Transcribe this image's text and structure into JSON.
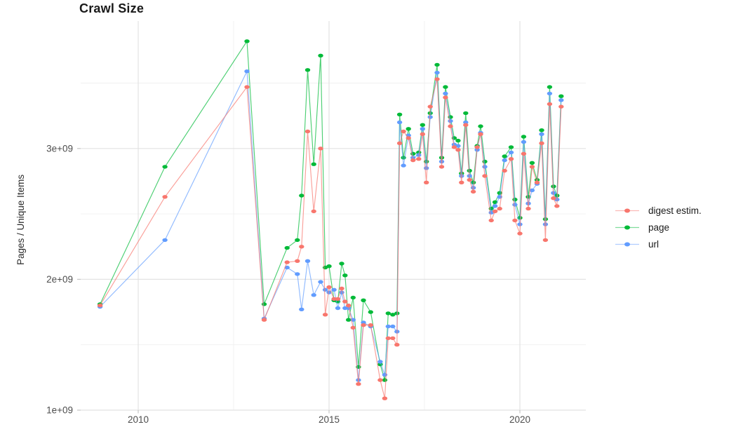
{
  "chart": {
    "title": "Crawl Size",
    "y_axis_title": "Pages / Unique Items"
  },
  "chart_data": {
    "type": "line",
    "title": "Crawl Size",
    "xlabel": "",
    "ylabel": "Pages / Unique Items",
    "y_scale": "1e9 (values below are billions)",
    "x_unit": "calendar year (decimal)",
    "xlim": [
      2008.5,
      2021.9
    ],
    "ylim_e9": [
      1.0,
      3.97
    ],
    "grid": true,
    "legend_position": "right",
    "x_ticks": {
      "major": [
        2010,
        2015,
        2020
      ],
      "labels": [
        "2010",
        "2015",
        "2020"
      ],
      "minor": [
        2012.5,
        2017.5
      ]
    },
    "y_ticks": {
      "major_e9": [
        1,
        2,
        3
      ],
      "labels": [
        "1e+09",
        "2e+09",
        "3e+09"
      ],
      "minor_e9": [
        1.5,
        2.5,
        3.5
      ]
    },
    "x": [
      2009.0,
      2010.7,
      2012.85,
      2013.3,
      2013.9,
      2014.17,
      2014.28,
      2014.44,
      2014.6,
      2014.78,
      2014.9,
      2015.0,
      2015.13,
      2015.23,
      2015.33,
      2015.42,
      2015.51,
      2015.63,
      2015.77,
      2015.9,
      2016.09,
      2016.34,
      2016.46,
      2016.55,
      2016.67,
      2016.78,
      2016.85,
      2016.95,
      2017.08,
      2017.2,
      2017.35,
      2017.45,
      2017.55,
      2017.65,
      2017.83,
      2017.95,
      2018.05,
      2018.18,
      2018.28,
      2018.38,
      2018.47,
      2018.58,
      2018.68,
      2018.78,
      2018.88,
      2018.97,
      2019.08,
      2019.25,
      2019.35,
      2019.47,
      2019.6,
      2019.77,
      2019.87,
      2020.0,
      2020.1,
      2020.22,
      2020.32,
      2020.45,
      2020.57,
      2020.67,
      2020.78,
      2020.88,
      2020.97,
      2021.08
    ],
    "series": [
      {
        "name": "digest estim.",
        "color": "#F8766D",
        "z": 3,
        "values_e9": [
          1.8,
          2.63,
          3.47,
          1.69,
          2.13,
          2.14,
          2.25,
          3.13,
          2.52,
          3.0,
          1.73,
          1.94,
          1.85,
          1.85,
          1.93,
          1.83,
          1.8,
          1.63,
          1.2,
          1.65,
          1.65,
          1.23,
          1.09,
          1.55,
          1.55,
          1.5,
          3.04,
          3.13,
          3.08,
          2.91,
          2.92,
          3.11,
          2.74,
          3.32,
          3.53,
          2.86,
          3.39,
          3.17,
          3.01,
          2.99,
          2.74,
          3.18,
          2.76,
          2.67,
          3.01,
          3.11,
          2.79,
          2.45,
          2.52,
          2.54,
          2.83,
          2.92,
          2.45,
          2.35,
          2.96,
          2.54,
          2.86,
          2.74,
          3.04,
          2.3,
          3.34,
          2.62,
          2.56,
          3.32
        ]
      },
      {
        "name": "page",
        "color": "#00BA38",
        "z": 1,
        "values_e9": [
          1.81,
          2.86,
          3.82,
          1.81,
          2.24,
          2.3,
          2.64,
          3.6,
          2.88,
          3.71,
          2.09,
          2.1,
          1.84,
          1.83,
          2.12,
          2.03,
          1.69,
          1.86,
          1.33,
          1.84,
          1.75,
          1.35,
          1.23,
          1.74,
          1.73,
          1.74,
          3.26,
          2.93,
          3.15,
          2.96,
          2.97,
          3.18,
          2.9,
          3.27,
          3.64,
          2.93,
          3.47,
          3.24,
          3.08,
          3.06,
          2.81,
          3.27,
          2.83,
          2.74,
          3.02,
          3.17,
          2.9,
          2.54,
          2.59,
          2.66,
          2.94,
          3.01,
          2.61,
          2.47,
          3.09,
          2.63,
          2.89,
          2.76,
          3.14,
          2.46,
          3.47,
          2.71,
          2.64,
          3.4
        ]
      },
      {
        "name": "url",
        "color": "#619CFF",
        "z": 2,
        "values_e9": [
          1.79,
          2.3,
          3.59,
          1.7,
          2.09,
          2.04,
          1.77,
          2.14,
          1.88,
          1.98,
          1.92,
          1.9,
          1.92,
          1.78,
          1.9,
          1.78,
          1.78,
          1.69,
          1.23,
          1.67,
          1.64,
          1.37,
          1.27,
          1.64,
          1.64,
          1.6,
          3.2,
          2.87,
          3.1,
          2.93,
          2.95,
          3.15,
          2.85,
          3.24,
          3.58,
          2.9,
          3.42,
          3.21,
          3.03,
          3.02,
          2.79,
          3.2,
          2.79,
          2.7,
          2.99,
          3.12,
          2.86,
          2.51,
          2.56,
          2.63,
          2.91,
          2.97,
          2.57,
          2.42,
          3.05,
          2.58,
          2.68,
          2.73,
          3.11,
          2.42,
          3.42,
          2.66,
          2.61,
          3.37
        ]
      }
    ],
    "style": {
      "grid_major_color": "#E2E2E2",
      "grid_minor_color": "#F0F0F0",
      "tick_color": "#C4C4C4",
      "tick_label_color": "#4D4D4D",
      "panel_background": "#FFFFFF"
    }
  }
}
